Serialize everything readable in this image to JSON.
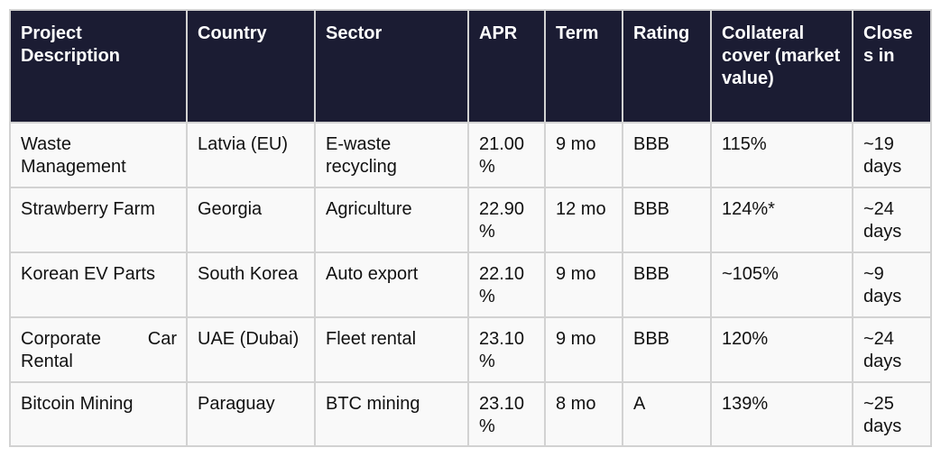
{
  "table": {
    "headers": [
      "Project Description",
      "Country",
      "Sector",
      "APR",
      "Term",
      "Rating",
      "Collateral cover (market value)",
      "Closes in"
    ],
    "rows": [
      [
        "Waste Management",
        "Latvia (EU)",
        "E-waste recycling",
        "21.00 %",
        "9 mo",
        "BBB",
        "115%",
        "~19 days"
      ],
      [
        "Strawberry Farm",
        "Georgia",
        "Agriculture",
        "22.90 %",
        "12 mo",
        "BBB",
        "124%*",
        "~24 days"
      ],
      [
        "Korean EV Parts",
        "South Korea",
        "Auto export",
        "22.10 %",
        "9 mo",
        "BBB",
        "~105%",
        "~9 days"
      ],
      [
        "Corporate Car Rental",
        "UAE (Dubai)",
        "Fleet rental",
        "23.10 %",
        "9 mo",
        "BBB",
        "120%",
        "~24 days"
      ],
      [
        "Bitcoin Mining",
        "Paraguay",
        "BTC mining",
        "23.10 %",
        "8 mo",
        "A",
        "139%",
        "~25 days"
      ]
    ]
  }
}
